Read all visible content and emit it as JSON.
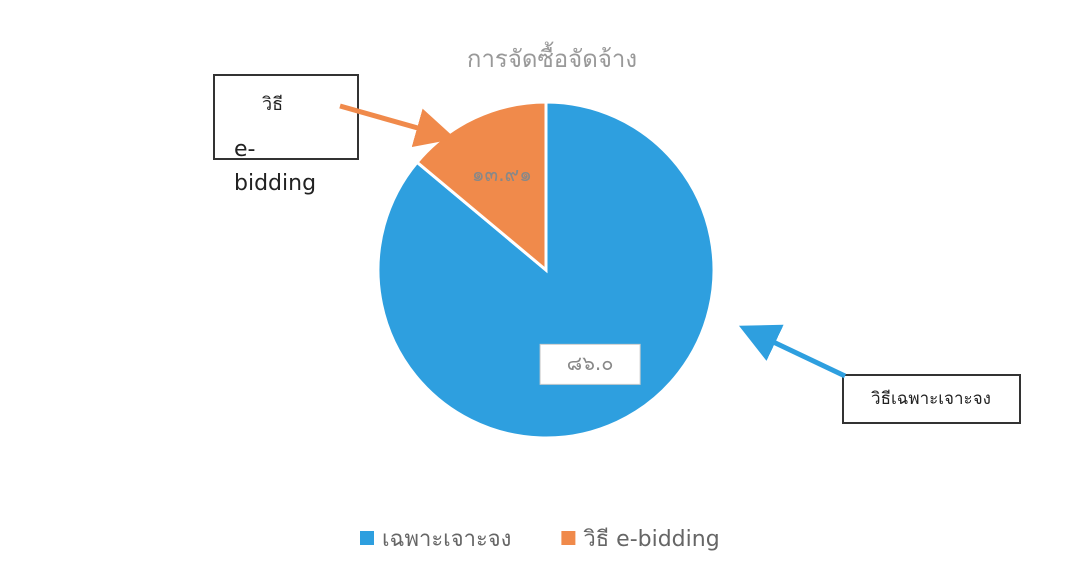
{
  "chart_data": {
    "type": "pie",
    "title": "การจัดซื้อจัดจ้าง",
    "categories": [
      "เฉพาะเจาะจง",
      "วิธี e-bidding"
    ],
    "values": [
      86.0,
      13.91
    ],
    "value_labels": [
      "๘๖.๐",
      "๑๓.๙๑"
    ],
    "colors": [
      "#2e9fdf",
      "#f08a4b"
    ],
    "legend": "bottom",
    "annotations": [
      {
        "lines": [
          "วิธี",
          "e-",
          "bidding"
        ]
      },
      {
        "lines": [
          "วิธีเฉพาะเจาะจง"
        ]
      }
    ]
  }
}
